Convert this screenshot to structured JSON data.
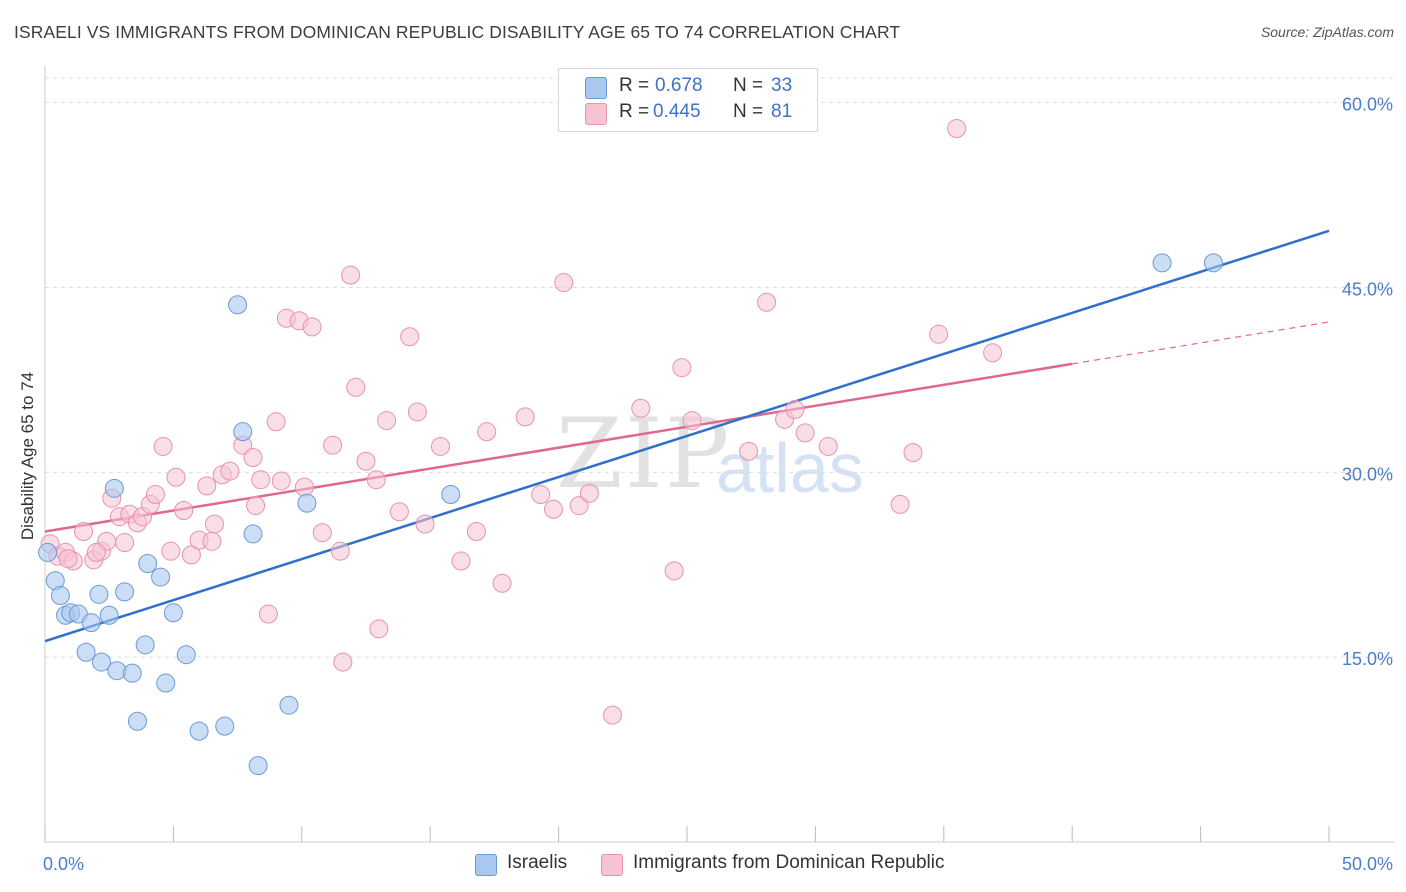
{
  "header": {
    "title": "ISRAELI VS IMMIGRANTS FROM DOMINICAN REPUBLIC DISABILITY AGE 65 TO 74 CORRELATION CHART",
    "source": "Source: ZipAtlas.com"
  },
  "watermark": {
    "zip": "ZIP",
    "atlas": "atlas"
  },
  "legend": {
    "rows": [
      {
        "r_label": "R =",
        "r_value": "0.678",
        "n_label": "N =",
        "n_value": "33"
      },
      {
        "r_label": "R =",
        "r_value": "0.445",
        "n_label": "N =",
        "n_value": "81"
      }
    ]
  },
  "bottom_legend": {
    "israelis": "Israelis",
    "dominican": "Immigrants from Dominican Republic"
  },
  "colors": {
    "blue_fill": "#a9c8ef",
    "blue_stroke": "#6c9ad6",
    "blue_line": "#2f6fcf",
    "pink_fill": "#f6c3d3",
    "pink_stroke": "#e892ad",
    "pink_line": "#e0688f",
    "tick_text": "#4a7ec9",
    "grid": "#dddddd"
  },
  "chart_data": {
    "type": "scatter",
    "title": "ISRAELI VS IMMIGRANTS FROM DOMINICAN REPUBLIC DISABILITY AGE 65 TO 74 CORRELATION CHART",
    "xlabel": "",
    "ylabel": "Disability Age 65 to 74",
    "xlim": [
      0,
      50
    ],
    "ylim": [
      0,
      62
    ],
    "x_tick_labels": [
      {
        "value": 0,
        "label": "0.0%"
      },
      {
        "value": 50,
        "label": "50.0%"
      }
    ],
    "y_tick_labels": [
      {
        "value": 15,
        "label": "15.0%"
      },
      {
        "value": 30,
        "label": "30.0%"
      },
      {
        "value": 45,
        "label": "45.0%"
      },
      {
        "value": 60,
        "label": "60.0%"
      }
    ],
    "series": [
      {
        "name": "Israelis",
        "r": 0.678,
        "n": 33,
        "trend": {
          "x": [
            0,
            50
          ],
          "y": [
            16.3,
            49.6
          ]
        },
        "points": [
          [
            0.1,
            23.5
          ],
          [
            0.4,
            21.2
          ],
          [
            0.6,
            20.0
          ],
          [
            0.8,
            18.4
          ],
          [
            1.0,
            18.6
          ],
          [
            1.3,
            18.5
          ],
          [
            1.6,
            15.4
          ],
          [
            1.8,
            17.8
          ],
          [
            2.1,
            20.1
          ],
          [
            2.2,
            14.6
          ],
          [
            2.5,
            18.4
          ],
          [
            2.7,
            28.7
          ],
          [
            2.8,
            13.9
          ],
          [
            3.1,
            20.3
          ],
          [
            3.4,
            13.7
          ],
          [
            3.6,
            9.8
          ],
          [
            3.9,
            16.0
          ],
          [
            4.0,
            22.6
          ],
          [
            4.5,
            21.5
          ],
          [
            4.7,
            12.9
          ],
          [
            5.0,
            18.6
          ],
          [
            5.5,
            15.2
          ],
          [
            6.0,
            9.0
          ],
          [
            7.0,
            9.4
          ],
          [
            7.5,
            43.6
          ],
          [
            7.7,
            33.3
          ],
          [
            8.1,
            25.0
          ],
          [
            8.3,
            6.2
          ],
          [
            9.5,
            11.1
          ],
          [
            10.2,
            27.5
          ],
          [
            15.8,
            28.2
          ],
          [
            43.5,
            47.0
          ],
          [
            45.5,
            47.0
          ]
        ]
      },
      {
        "name": "Immigrants from Dominican Republic",
        "r": 0.445,
        "n": 81,
        "trend": {
          "x": [
            0,
            40
          ],
          "y": [
            25.2,
            38.8
          ]
        },
        "trend_extension": {
          "x": [
            40,
            50
          ],
          "y": [
            38.8,
            42.2
          ]
        },
        "points": [
          [
            0.2,
            24.2
          ],
          [
            0.5,
            23.2
          ],
          [
            0.8,
            23.5
          ],
          [
            1.1,
            22.8
          ],
          [
            1.5,
            25.2
          ],
          [
            1.9,
            22.9
          ],
          [
            2.2,
            23.6
          ],
          [
            2.4,
            24.4
          ],
          [
            2.6,
            27.9
          ],
          [
            2.9,
            26.4
          ],
          [
            3.1,
            24.3
          ],
          [
            3.3,
            26.6
          ],
          [
            3.6,
            25.9
          ],
          [
            3.8,
            26.4
          ],
          [
            4.1,
            27.4
          ],
          [
            4.3,
            28.2
          ],
          [
            4.6,
            32.1
          ],
          [
            4.9,
            23.6
          ],
          [
            5.1,
            29.6
          ],
          [
            5.4,
            26.9
          ],
          [
            5.7,
            23.3
          ],
          [
            6.0,
            24.5
          ],
          [
            6.3,
            28.9
          ],
          [
            6.6,
            25.8
          ],
          [
            6.9,
            29.8
          ],
          [
            7.2,
            30.1
          ],
          [
            7.7,
            32.2
          ],
          [
            8.1,
            31.2
          ],
          [
            8.4,
            29.4
          ],
          [
            8.7,
            18.5
          ],
          [
            9.0,
            34.1
          ],
          [
            9.4,
            42.5
          ],
          [
            9.9,
            42.3
          ],
          [
            10.1,
            28.8
          ],
          [
            10.4,
            41.8
          ],
          [
            10.8,
            25.1
          ],
          [
            11.2,
            32.2
          ],
          [
            11.5,
            23.6
          ],
          [
            11.9,
            46.0
          ],
          [
            12.1,
            36.9
          ],
          [
            12.5,
            30.9
          ],
          [
            12.9,
            29.4
          ],
          [
            13.3,
            34.2
          ],
          [
            13.8,
            26.8
          ],
          [
            14.2,
            41.0
          ],
          [
            14.5,
            34.9
          ],
          [
            14.8,
            25.8
          ],
          [
            15.4,
            32.1
          ],
          [
            16.2,
            22.8
          ],
          [
            16.8,
            25.2
          ],
          [
            17.2,
            33.3
          ],
          [
            17.8,
            21.0
          ],
          [
            18.7,
            34.5
          ],
          [
            19.3,
            28.2
          ],
          [
            19.8,
            27.0
          ],
          [
            20.2,
            45.4
          ],
          [
            20.8,
            27.3
          ],
          [
            21.2,
            28.3
          ],
          [
            22.1,
            10.3
          ],
          [
            23.2,
            35.2
          ],
          [
            24.5,
            22.0
          ],
          [
            24.8,
            38.5
          ],
          [
            25.2,
            34.2
          ],
          [
            27.4,
            31.7
          ],
          [
            28.1,
            43.8
          ],
          [
            28.8,
            34.3
          ],
          [
            29.2,
            35.1
          ],
          [
            29.6,
            33.2
          ],
          [
            30.5,
            32.1
          ],
          [
            33.3,
            27.4
          ],
          [
            33.8,
            31.6
          ],
          [
            34.8,
            41.2
          ],
          [
            35.5,
            57.9
          ],
          [
            36.9,
            39.7
          ],
          [
            8.2,
            27.3
          ],
          [
            6.5,
            24.4
          ],
          [
            9.2,
            29.3
          ],
          [
            13.0,
            17.3
          ],
          [
            11.6,
            14.6
          ],
          [
            2.0,
            23.5
          ],
          [
            0.9,
            23.0
          ]
        ]
      }
    ]
  }
}
